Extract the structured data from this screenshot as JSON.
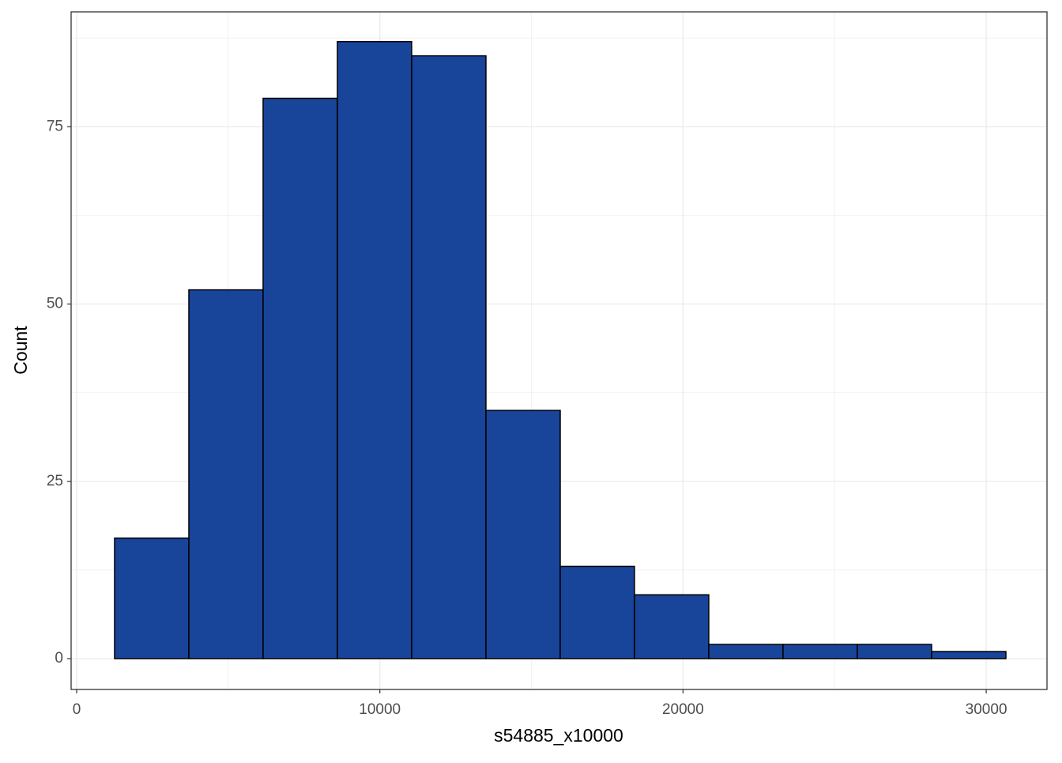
{
  "chart_data": {
    "type": "histogram",
    "x_label": "s54885_x10000",
    "y_label": "Count",
    "bins": [
      1251,
      3701,
      6150,
      8600,
      11050,
      13500,
      15950,
      18399,
      20849,
      23299,
      25749,
      28199,
      30649
    ],
    "values": [
      17,
      52,
      79,
      87,
      85,
      35,
      13,
      9,
      2,
      2,
      2,
      1
    ],
    "color": "#18449a",
    "edge_color": "#000000",
    "xlim": [
      -182,
      32004
    ],
    "xticks": [
      0,
      10000,
      20000,
      30000
    ],
    "ylim": [
      -4.35,
      91.2
    ],
    "yticks": [
      0,
      25,
      50,
      75
    ],
    "grid": true
  }
}
